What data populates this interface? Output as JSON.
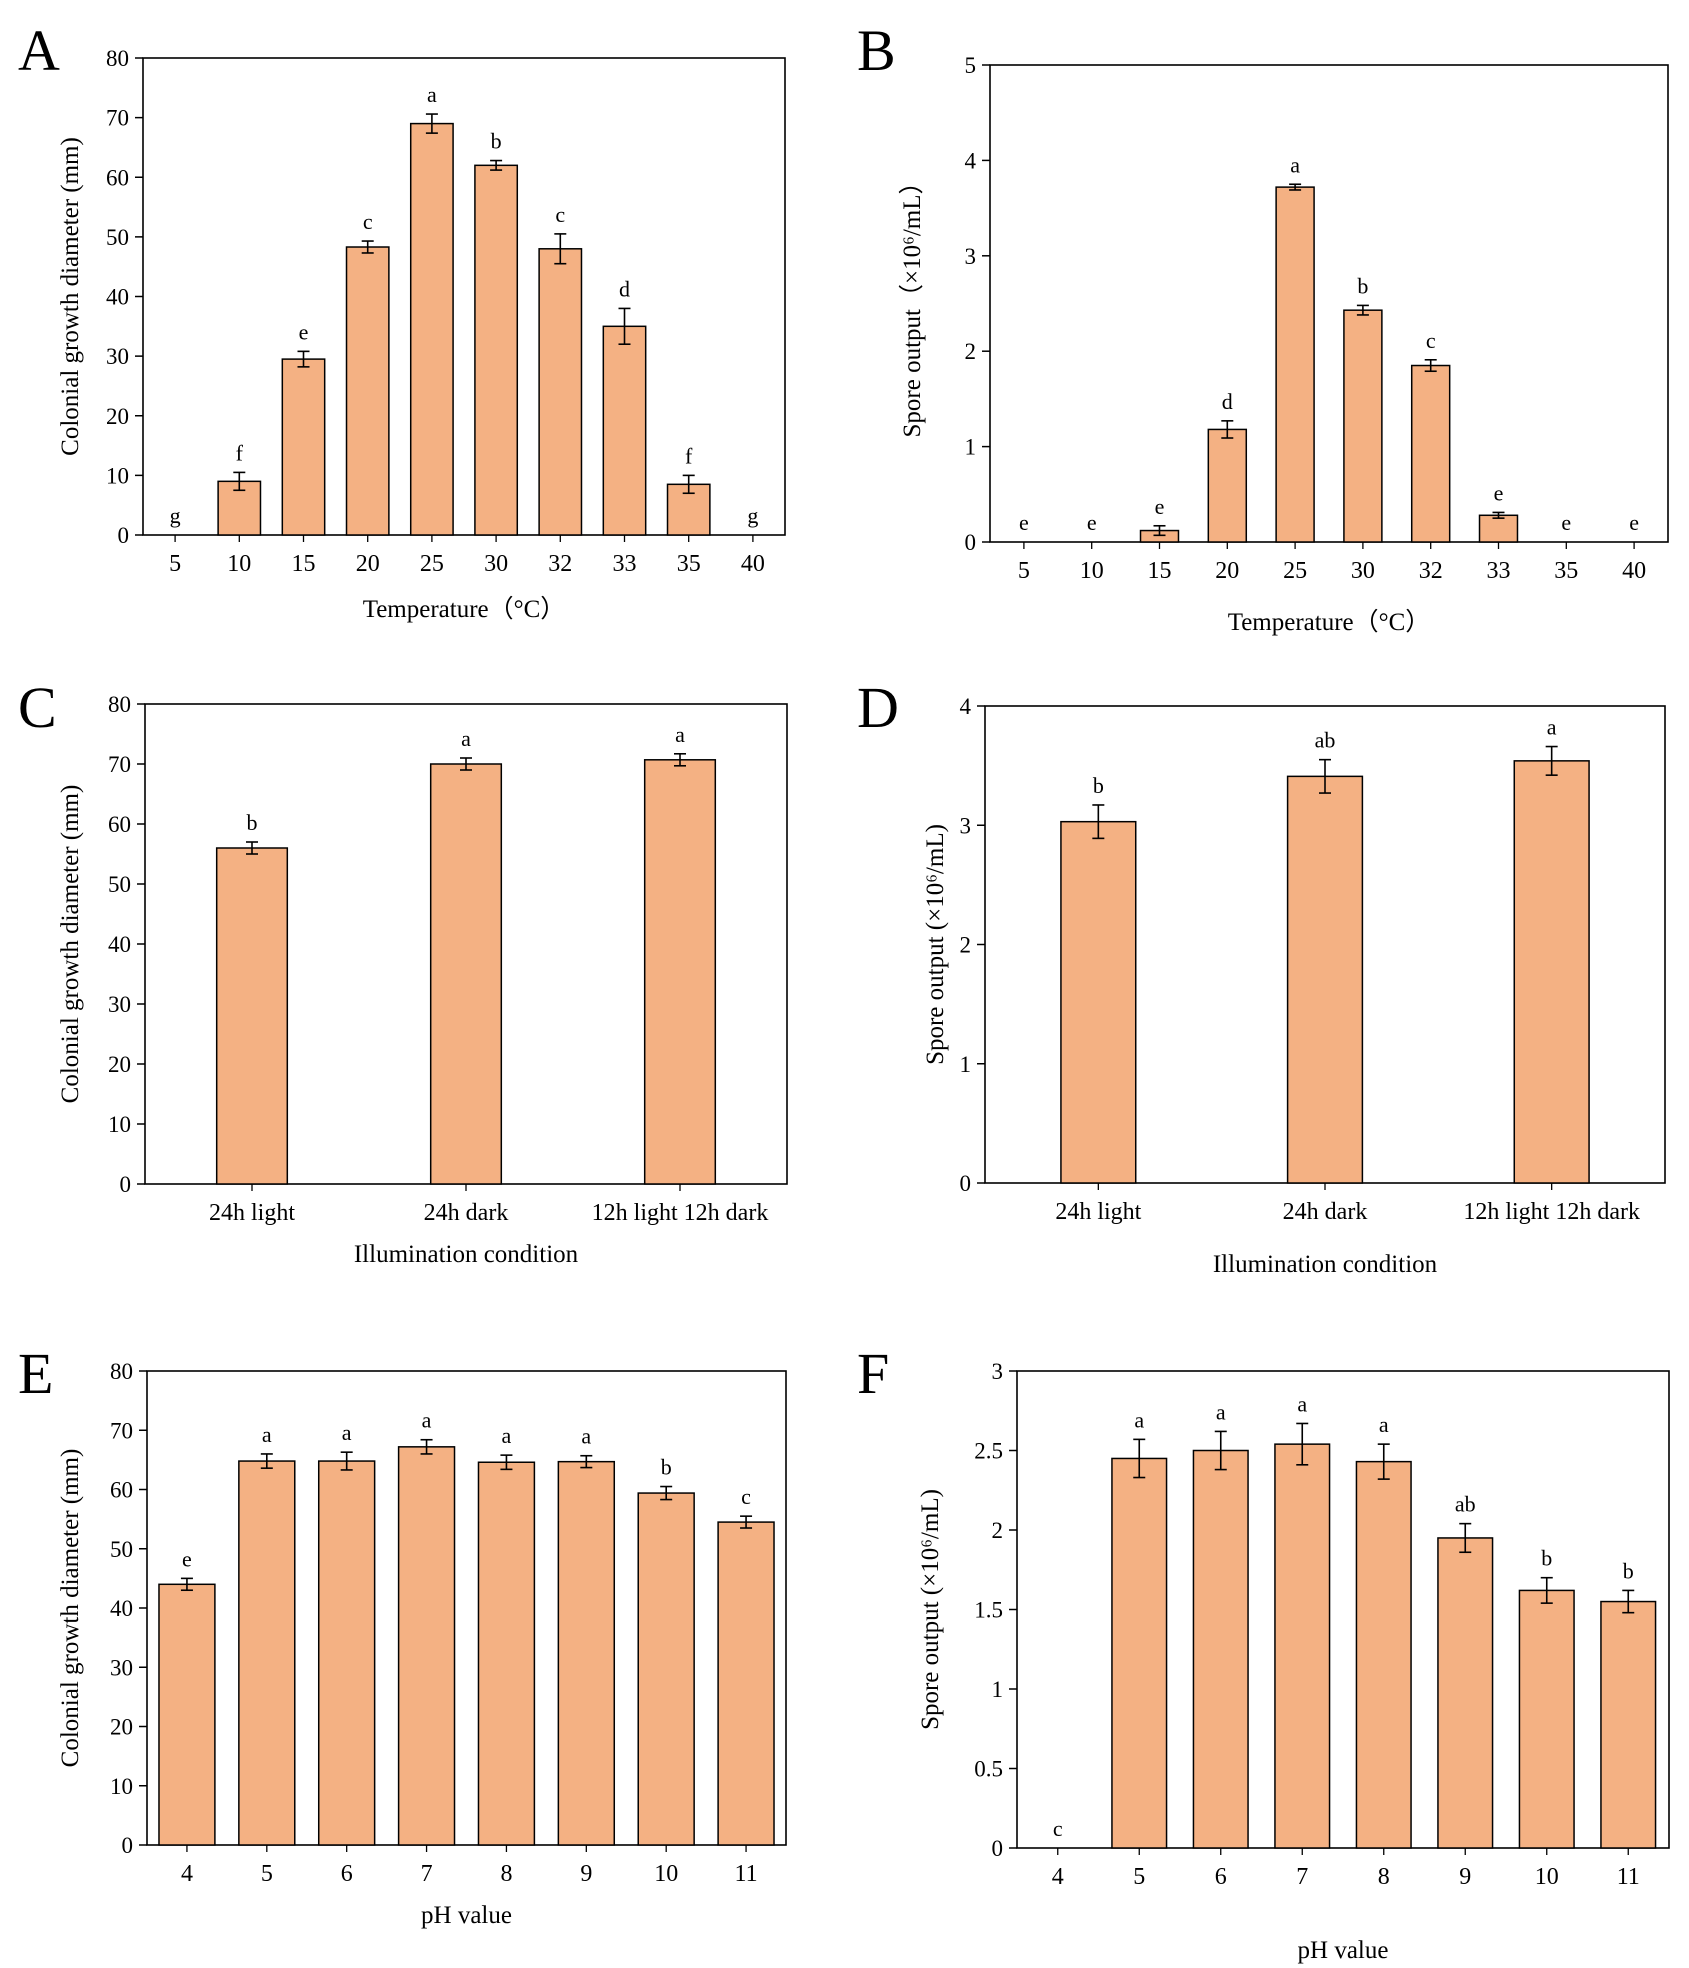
{
  "colors": {
    "bar_fill": "#f4b183",
    "bar_stroke": "#000000",
    "axis": "#000000"
  },
  "chart_data": [
    {
      "id": "A",
      "panel_label": "A",
      "type": "bar",
      "categories": [
        "5",
        "10",
        "15",
        "20",
        "25",
        "30",
        "32",
        "33",
        "35",
        "40"
      ],
      "values": [
        0,
        9,
        29.5,
        48.3,
        69,
        62,
        48,
        35,
        8.5,
        0
      ],
      "errors": [
        0,
        1.5,
        1.3,
        1.0,
        1.6,
        0.8,
        2.5,
        3.0,
        1.5,
        0
      ],
      "significance": [
        "g",
        "f",
        "e",
        "c",
        "a",
        "b",
        "c",
        "d",
        "f",
        "g"
      ],
      "title": "",
      "xlabel": "Temperature（°C）",
      "ylabel": "Colonial growth diameter (mm)",
      "ylim": [
        0,
        80
      ],
      "yticks": [
        "0",
        "10",
        "20",
        "30",
        "40",
        "50",
        "60",
        "70",
        "80"
      ],
      "grid": false
    },
    {
      "id": "B",
      "panel_label": "B",
      "type": "bar",
      "categories": [
        "5",
        "10",
        "15",
        "20",
        "25",
        "30",
        "32",
        "33",
        "35",
        "40"
      ],
      "values": [
        0,
        0,
        0.12,
        1.18,
        3.72,
        2.43,
        1.85,
        0.28,
        0,
        0
      ],
      "errors": [
        0,
        0,
        0.05,
        0.09,
        0.03,
        0.05,
        0.06,
        0.03,
        0,
        0
      ],
      "significance": [
        "e",
        "e",
        "e",
        "d",
        "a",
        "b",
        "c",
        "e",
        "e",
        "e"
      ],
      "title": "",
      "xlabel": "Temperature（°C）",
      "ylabel": "Spore output（×10⁶/mL）",
      "ylim": [
        0,
        5
      ],
      "yticks": [
        "0",
        "1",
        "2",
        "3",
        "4",
        "5"
      ],
      "grid": false
    },
    {
      "id": "C",
      "panel_label": "C",
      "type": "bar",
      "categories": [
        "24h light",
        "24h dark",
        "12h light 12h dark"
      ],
      "values": [
        56,
        70,
        70.7
      ],
      "errors": [
        1.0,
        1.0,
        1.0
      ],
      "significance": [
        "b",
        "a",
        "a"
      ],
      "title": "",
      "xlabel": "Illumination condition",
      "ylabel": "Colonial growth diameter (mm)",
      "ylim": [
        0,
        80
      ],
      "yticks": [
        "0",
        "10",
        "20",
        "30",
        "40",
        "50",
        "60",
        "70",
        "80"
      ],
      "grid": false
    },
    {
      "id": "D",
      "panel_label": "D",
      "type": "bar",
      "categories": [
        "24h light",
        "24h dark",
        "12h light 12h dark"
      ],
      "values": [
        3.03,
        3.41,
        3.54
      ],
      "errors": [
        0.14,
        0.14,
        0.12
      ],
      "significance": [
        "b",
        "ab",
        "a"
      ],
      "title": "",
      "xlabel": "Illumination condition",
      "ylabel": "Spore output (×10⁶/mL)",
      "ylim": [
        0,
        4
      ],
      "yticks": [
        "0",
        "1",
        "2",
        "3",
        "4"
      ],
      "grid": false
    },
    {
      "id": "E",
      "panel_label": "E",
      "type": "bar",
      "categories": [
        "4",
        "5",
        "6",
        "7",
        "8",
        "9",
        "10",
        "11"
      ],
      "values": [
        44,
        64.8,
        64.8,
        67.2,
        64.6,
        64.7,
        59.4,
        54.5
      ],
      "errors": [
        1.0,
        1.2,
        1.5,
        1.2,
        1.2,
        1.0,
        1.1,
        1.0
      ],
      "significance": [
        "e",
        "a",
        "a",
        "a",
        "a",
        "a",
        "b",
        "c"
      ],
      "title": "",
      "xlabel": "pH value",
      "ylabel": "Colonial growth diameter (mm)",
      "ylim": [
        0,
        80
      ],
      "yticks": [
        "0",
        "10",
        "20",
        "30",
        "40",
        "50",
        "60",
        "70",
        "80"
      ],
      "grid": false
    },
    {
      "id": "F",
      "panel_label": "F",
      "type": "bar",
      "categories": [
        "4",
        "5",
        "6",
        "7",
        "8",
        "9",
        "10",
        "11"
      ],
      "values": [
        0,
        2.45,
        2.5,
        2.54,
        2.43,
        1.95,
        1.62,
        1.55
      ],
      "errors": [
        0,
        0.12,
        0.12,
        0.13,
        0.11,
        0.09,
        0.08,
        0.07
      ],
      "significance": [
        "c",
        "a",
        "a",
        "a",
        "a",
        "ab",
        "b",
        "b"
      ],
      "title": "",
      "xlabel": "pH value",
      "ylabel": "Spore output (×10⁶/mL)",
      "ylim": [
        0,
        3
      ],
      "yticks": [
        "0",
        "0.5",
        "1",
        "1.5",
        "2",
        "2.5",
        "3"
      ],
      "grid": false
    }
  ]
}
